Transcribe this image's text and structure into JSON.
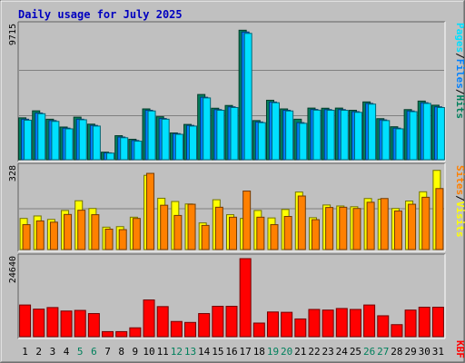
{
  "chart_data": {
    "type": "bar",
    "title": "Daily usage for July 2025",
    "categories": [
      "1",
      "2",
      "3",
      "4",
      "5",
      "6",
      "7",
      "8",
      "9",
      "10",
      "11",
      "12",
      "13",
      "14",
      "15",
      "16",
      "17",
      "18",
      "19",
      "20",
      "21",
      "22",
      "23",
      "24",
      "25",
      "26",
      "27",
      "28",
      "29",
      "30",
      "31"
    ],
    "weekend_days": [
      "5",
      "6",
      "12",
      "13",
      "19",
      "20",
      "26",
      "27"
    ],
    "panels": [
      {
        "name": "hits-files-pages",
        "ymax_label": "9715",
        "ymax": 9715,
        "legend": [
          "Pages",
          "/",
          "Files",
          "/",
          "Hits"
        ],
        "legend_colors": [
          "#00e0ff",
          "#000000",
          "#0080ff",
          "#000000",
          "#00805c"
        ],
        "series": [
          {
            "name": "Hits",
            "color": "#00805c",
            "values": [
              3050,
              3560,
              2950,
              2380,
              3100,
              2590,
              550,
              1750,
              1490,
              3700,
              3130,
              1950,
              2570,
              4750,
              3750,
              3950,
              9430,
              2850,
              4330,
              3700,
              2950,
              3760,
              3750,
              3760,
              3600,
              4210,
              2990,
              2400,
              3650,
              4270,
              3970
            ]
          },
          {
            "name": "Files",
            "color": "#0080ff",
            "values": [
              2950,
              3400,
              2850,
              2300,
              2950,
              2500,
              500,
              1650,
              1400,
              3600,
              3000,
              1900,
              2500,
              4550,
              3650,
              3850,
              9300,
              2750,
              4200,
              3600,
              2700,
              3660,
              3650,
              3650,
              3500,
              4100,
              2900,
              2300,
              3550,
              4150,
              3850
            ]
          },
          {
            "name": "Pages",
            "color": "#00e0ff",
            "values": [
              2880,
              3350,
              2790,
              2250,
              2910,
              2450,
              480,
              1600,
              1350,
              3550,
              2950,
              1850,
              2450,
              4500,
              3600,
              3800,
              9200,
              2700,
              4150,
              3550,
              2650,
              3610,
              3600,
              3600,
              3450,
              4050,
              2850,
              2250,
              3500,
              4100,
              3800
            ]
          }
        ]
      },
      {
        "name": "visits-sites",
        "ymax_label": "328",
        "ymax": 328,
        "legend": [
          "Sites",
          "/",
          "Visits"
        ],
        "legend_colors": [
          "#ff8000",
          "#000000",
          "#ffff00"
        ],
        "series": [
          {
            "name": "Visits",
            "color": "#ffff00",
            "values": [
              125,
              135,
              121,
              157,
              196,
              165,
              90,
              92,
              130,
              298,
              206,
              193,
              183,
              107,
              200,
              140,
              125,
              157,
              127,
              161,
              231,
              128,
              179,
              175,
              172,
              205,
              202,
              165,
              195,
              232,
              318
            ]
          },
          {
            "name": "Sites",
            "color": "#ff8000",
            "values": [
              100,
              115,
              110,
              141,
              158,
              140,
              82,
              80,
              125,
              306,
              178,
              137,
              182,
              97,
              170,
              130,
              235,
              130,
              100,
              133,
              215,
              120,
              169,
              170,
              165,
              190,
              205,
              155,
              182,
              210,
              245
            ]
          }
        ]
      },
      {
        "name": "kbytes",
        "ymax_label": "24640",
        "ymax": 24640,
        "legend": [
          "KB",
          "F"
        ],
        "legend_colors": [
          "#ff0000",
          "#ff0000"
        ],
        "series": [
          {
            "name": "KB F",
            "color": "#ff0000",
            "values": [
              10000,
              8700,
              9200,
              8100,
              8300,
              7300,
              1600,
              1600,
              2800,
              11600,
              9500,
              4800,
              4500,
              7300,
              9600,
              9600,
              24640,
              4300,
              7800,
              7700,
              5600,
              8600,
              8400,
              8900,
              8600,
              10000,
              6600,
              3800,
              8400,
              9300,
              9300
            ]
          }
        ]
      }
    ]
  }
}
